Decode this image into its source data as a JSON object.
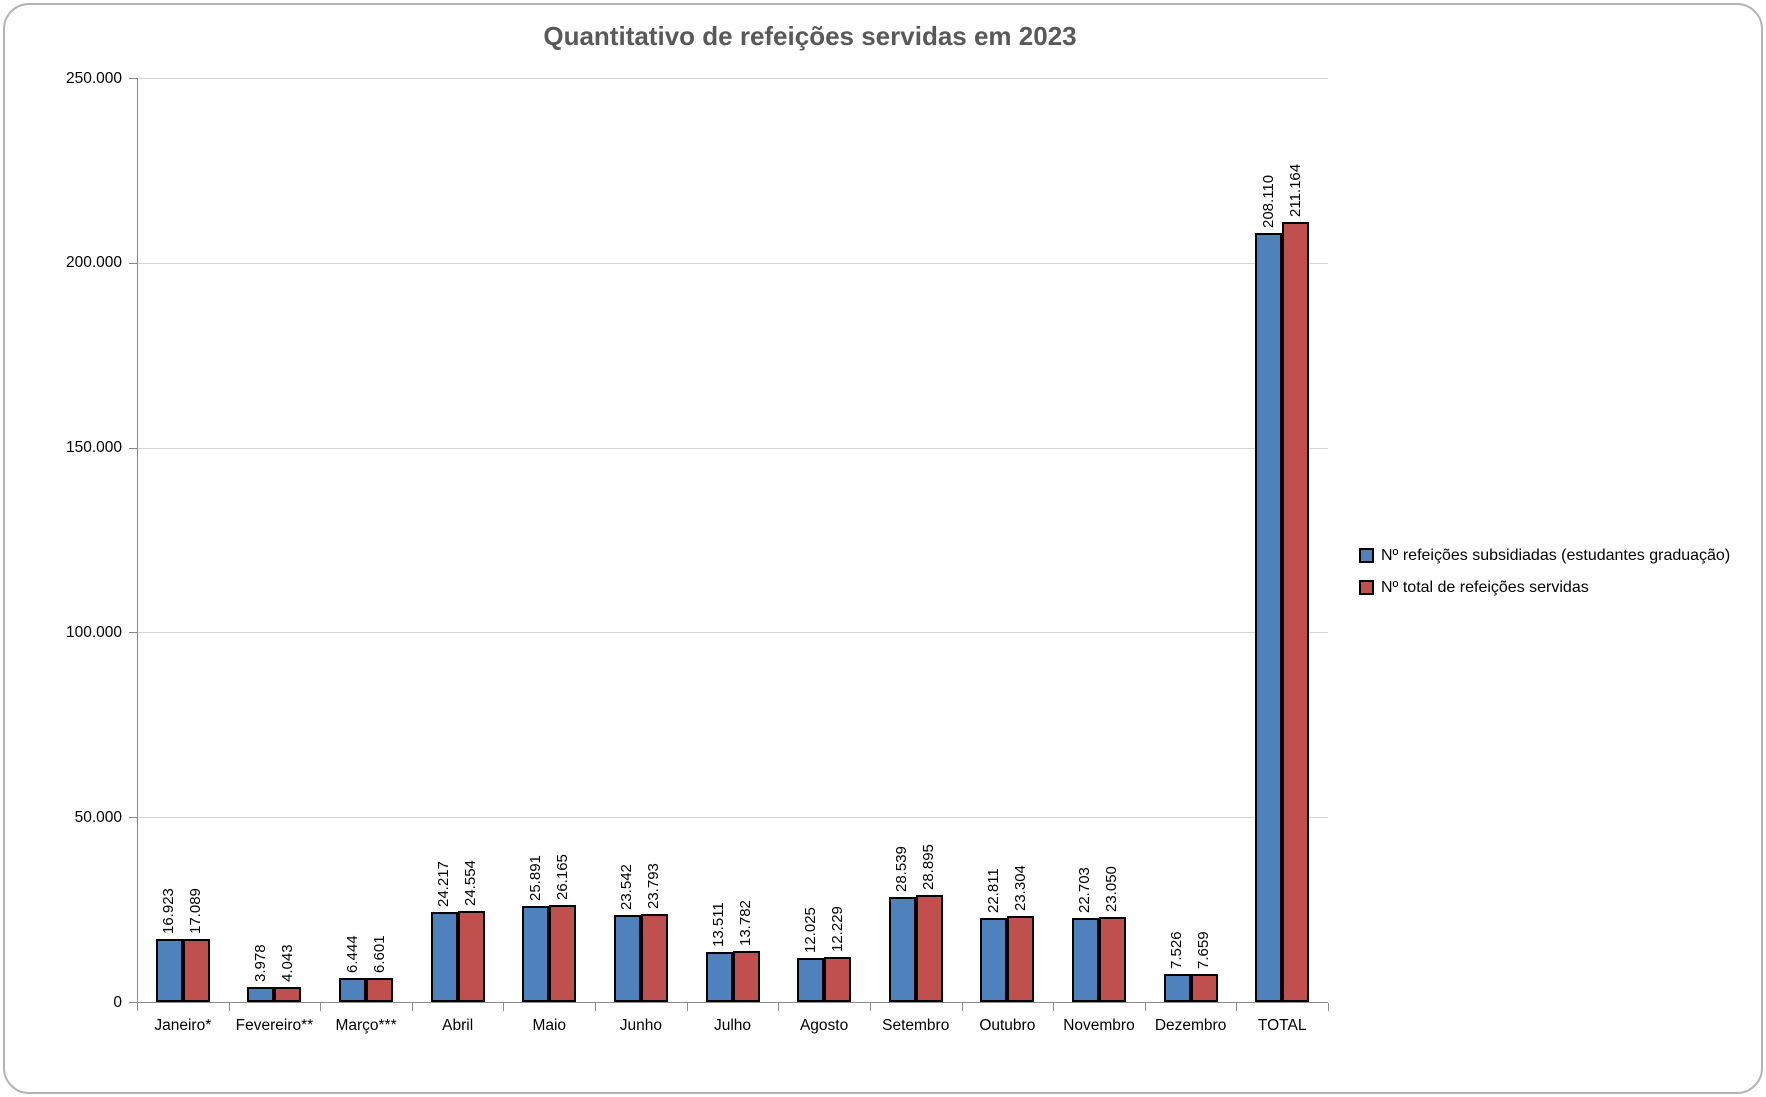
{
  "chart_data": {
    "type": "bar",
    "title": "Quantitativo de refeições servidas em 2023",
    "categories": [
      "Janeiro*",
      "Fevereiro**",
      "Março***",
      "Abril",
      "Maio",
      "Junho",
      "Julho",
      "Agosto",
      "Setembro",
      "Outubro",
      "Novembro",
      "Dezembro",
      "TOTAL"
    ],
    "series": [
      {
        "name": "Nº refeições subsidiadas (estudantes graduação)",
        "color": "#4F81BD",
        "values": [
          16923,
          3978,
          6444,
          24217,
          25891,
          23542,
          13511,
          12025,
          28539,
          22811,
          22703,
          7526,
          208110
        ],
        "labels": [
          "16.923",
          "3.978",
          "6.444",
          "24.217",
          "25.891",
          "23.542",
          "13.511",
          "12.025",
          "28.539",
          "22.811",
          "22.703",
          "7.526",
          "208.110"
        ]
      },
      {
        "name": "Nº total de refeições servidas",
        "color": "#C0504D",
        "values": [
          17089,
          4043,
          6601,
          24554,
          26165,
          23793,
          13782,
          12229,
          28895,
          23304,
          23050,
          7659,
          211164
        ],
        "labels": [
          "17.089",
          "4.043",
          "6.601",
          "24.554",
          "26.165",
          "23.793",
          "13.782",
          "12.229",
          "28.895",
          "23.304",
          "23.050",
          "7.659",
          "211.164"
        ]
      }
    ],
    "ylim": [
      0,
      250000
    ],
    "ytick_interval": 50000,
    "ytick_labels": [
      "0",
      "50.000",
      "100.000",
      "150.000",
      "200.000",
      "250.000"
    ],
    "grid": true,
    "legend_position": "right",
    "style": {
      "title_color": "#595959",
      "axis_color": "#8a8a8a",
      "gridline_color": "#d4d4d4",
      "bar_border_color": "#000000",
      "frame_border_color": "#b3b3b3"
    }
  }
}
